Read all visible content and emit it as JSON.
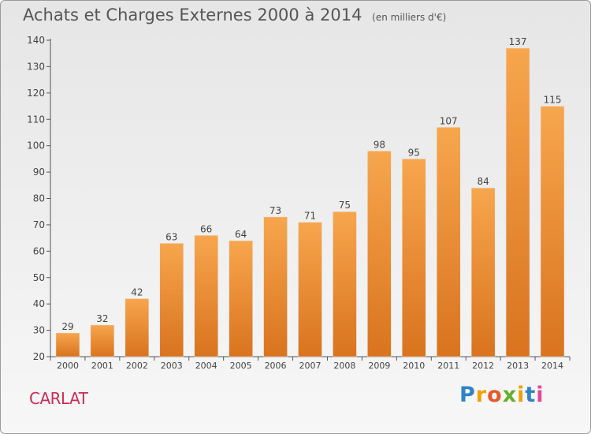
{
  "chart_data": {
    "type": "bar",
    "title": "Achats et Charges Externes 2000 à 2014",
    "unit_label": "(en milliers d'€)",
    "categories": [
      "2000",
      "2001",
      "2002",
      "2003",
      "2004",
      "2005",
      "2006",
      "2007",
      "2008",
      "2009",
      "2010",
      "2011",
      "2012",
      "2013",
      "2014"
    ],
    "values": [
      29,
      32,
      42,
      63,
      66,
      64,
      73,
      71,
      75,
      98,
      95,
      107,
      84,
      137,
      115
    ],
    "ylim": [
      20,
      140
    ],
    "yticks": [
      20,
      30,
      40,
      50,
      60,
      70,
      80,
      90,
      100,
      110,
      120,
      130,
      140
    ],
    "grid": false,
    "bar_color_top": "#f7a64e",
    "bar_color_bottom": "#d9731e"
  },
  "commune": "CARLAT",
  "logo": {
    "text": "Proxiti",
    "letters": [
      "P",
      "r",
      "o",
      "x",
      "i",
      "t",
      "i"
    ]
  }
}
